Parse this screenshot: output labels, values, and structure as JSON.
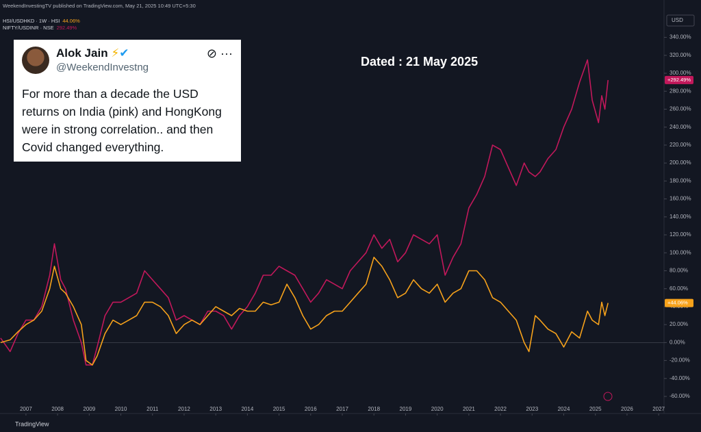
{
  "chart_data": {
    "type": "line",
    "header": "WeekendInvestingTV published on TradingView.com, May 21, 2025 10:49 UTC+5:30",
    "annotation": "Dated : 21 May 2025",
    "currency": "USD",
    "footer": "TradingView",
    "xlim": [
      2006.18,
      2027.17
    ],
    "xticks": [
      2007,
      2008,
      2009,
      2010,
      2011,
      2012,
      2013,
      2014,
      2015,
      2016,
      2017,
      2018,
      2019,
      2020,
      2021,
      2022,
      2023,
      2024,
      2025,
      2026,
      2027
    ],
    "ylim": [
      -76,
      374
    ],
    "yticks": [
      {
        "value": -60,
        "label": "-60.00%"
      },
      {
        "value": -40,
        "label": "-40.00%"
      },
      {
        "value": -20,
        "label": "-20.00%"
      },
      {
        "value": 0,
        "label": "0.00%"
      },
      {
        "value": 20,
        "label": "20.00%"
      },
      {
        "value": 40,
        "label": "40.00%"
      },
      {
        "value": 60,
        "label": "60.00%"
      },
      {
        "value": 80,
        "label": "80.00%"
      },
      {
        "value": 100,
        "label": "100.00%"
      },
      {
        "value": 120,
        "label": "120.00%"
      },
      {
        "value": 140,
        "label": "140.00%"
      },
      {
        "value": 160,
        "label": "160.00%"
      },
      {
        "value": 180,
        "label": "180.00%"
      },
      {
        "value": 200,
        "label": "200.00%"
      },
      {
        "value": 220,
        "label": "220.00%"
      },
      {
        "value": 240,
        "label": "240.00%"
      },
      {
        "value": 260,
        "label": "260.00%"
      },
      {
        "value": 280,
        "label": "280.00%"
      },
      {
        "value": 300,
        "label": "300.00%"
      },
      {
        "value": 320,
        "label": "320.00%"
      },
      {
        "value": 340,
        "label": "340.00%"
      }
    ],
    "grid": false,
    "x": [
      2006.2,
      2006.5,
      2006.75,
      2007.0,
      2007.25,
      2007.5,
      2007.75,
      2007.9,
      2008.1,
      2008.25,
      2008.5,
      2008.75,
      2008.9,
      2009.1,
      2009.25,
      2009.5,
      2009.75,
      2010.0,
      2010.25,
      2010.5,
      2010.75,
      2011.0,
      2011.25,
      2011.5,
      2011.75,
      2012.0,
      2012.25,
      2012.5,
      2012.75,
      2013.0,
      2013.25,
      2013.5,
      2013.75,
      2014.0,
      2014.25,
      2014.5,
      2014.75,
      2015.0,
      2015.25,
      2015.5,
      2015.75,
      2016.0,
      2016.25,
      2016.5,
      2016.75,
      2017.0,
      2017.25,
      2017.5,
      2017.75,
      2018.0,
      2018.25,
      2018.5,
      2018.75,
      2019.0,
      2019.25,
      2019.5,
      2019.75,
      2020.0,
      2020.25,
      2020.5,
      2020.75,
      2021.0,
      2021.25,
      2021.5,
      2021.75,
      2022.0,
      2022.25,
      2022.5,
      2022.75,
      2022.9,
      2023.1,
      2023.25,
      2023.5,
      2023.75,
      2024.0,
      2024.25,
      2024.5,
      2024.75,
      2024.9,
      2025.1,
      2025.2,
      2025.3,
      2025.4
    ],
    "series": [
      {
        "name": "NIFTY/USDINR · NSE",
        "legend_value": "292.49%",
        "last_label": "+292.49%",
        "color": "#c2185b",
        "values": [
          5,
          -10,
          10,
          25,
          25,
          40,
          75,
          110,
          70,
          60,
          25,
          0,
          -25,
          -25,
          -5,
          30,
          45,
          45,
          50,
          55,
          80,
          70,
          60,
          50,
          25,
          30,
          25,
          20,
          35,
          35,
          30,
          15,
          30,
          40,
          55,
          75,
          75,
          85,
          80,
          75,
          60,
          45,
          55,
          70,
          65,
          60,
          80,
          90,
          100,
          120,
          105,
          115,
          90,
          100,
          120,
          115,
          110,
          120,
          75,
          95,
          110,
          150,
          165,
          185,
          220,
          215,
          195,
          175,
          200,
          190,
          185,
          190,
          205,
          215,
          240,
          260,
          290,
          315,
          270,
          245,
          275,
          260,
          292.49
        ]
      },
      {
        "name": "HSI/USDHKD · 1W · HSI",
        "legend_value": "44.06%",
        "last_label": "+44.06%",
        "color": "#f7a21b",
        "values": [
          0,
          3,
          12,
          20,
          25,
          35,
          60,
          85,
          60,
          55,
          40,
          20,
          -20,
          -25,
          -15,
          10,
          25,
          20,
          25,
          30,
          45,
          45,
          40,
          30,
          10,
          20,
          25,
          20,
          30,
          40,
          35,
          30,
          38,
          35,
          35,
          45,
          42,
          45,
          65,
          50,
          30,
          15,
          20,
          30,
          35,
          35,
          45,
          55,
          65,
          95,
          85,
          70,
          50,
          55,
          70,
          60,
          55,
          65,
          45,
          55,
          60,
          80,
          80,
          70,
          50,
          45,
          35,
          25,
          0,
          -10,
          30,
          25,
          15,
          10,
          -5,
          12,
          5,
          35,
          25,
          20,
          45,
          30,
          44.06
        ]
      }
    ]
  },
  "tweet": {
    "name": "Alok Jain",
    "handle": "@WeekendInvestng",
    "lines": [
      "For more than a decade the USD",
      "returns on India (pink) and HongKong",
      "were in strong correlation.. and then",
      "Covid changed everything."
    ]
  }
}
